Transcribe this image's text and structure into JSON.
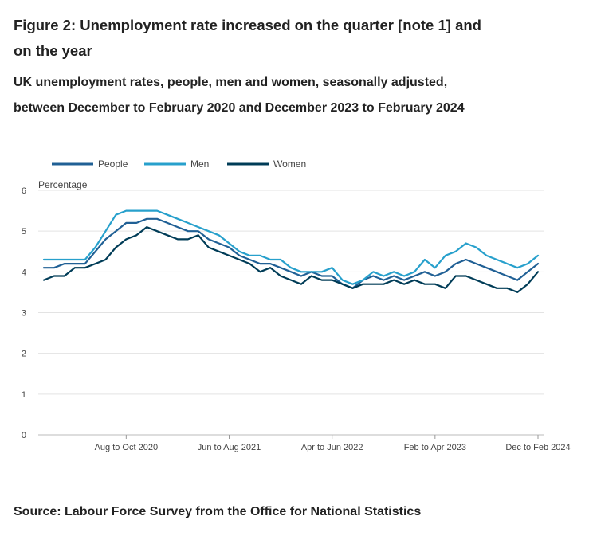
{
  "title": "Figure 2: Unemployment rate increased on the quarter [note 1] and on the year",
  "subtitle": "UK unemployment rates, people, men and women, seasonally adjusted, between December to February 2020 and December 2023 to February 2024",
  "source": "Source: Labour Force Survey from the Office for National Statistics",
  "chart_data": {
    "type": "line",
    "ylabel": "Percentage",
    "xlabel": "",
    "ylim": [
      0,
      6
    ],
    "yticks": [
      0,
      1,
      2,
      3,
      4,
      5,
      6
    ],
    "grid": true,
    "legend_position": "top-left",
    "x_tick_labels": [
      {
        "index": 8,
        "label": "Aug to Oct 2020"
      },
      {
        "index": 18,
        "label": "Jun to Aug 2021"
      },
      {
        "index": 28,
        "label": "Apr to Jun 2022"
      },
      {
        "index": 38,
        "label": "Feb to Apr 2023"
      },
      {
        "index": 48,
        "label": "Dec to Feb 2024"
      }
    ],
    "series": [
      {
        "name": "People",
        "color": "#206095",
        "values": [
          4.1,
          4.1,
          4.2,
          4.2,
          4.2,
          4.5,
          4.8,
          5.0,
          5.2,
          5.2,
          5.3,
          5.3,
          5.2,
          5.1,
          5.0,
          5.0,
          4.8,
          4.7,
          4.6,
          4.4,
          4.3,
          4.2,
          4.2,
          4.1,
          4.0,
          3.9,
          4.0,
          3.9,
          3.9,
          3.7,
          3.6,
          3.8,
          3.9,
          3.8,
          3.9,
          3.8,
          3.9,
          4.0,
          3.9,
          4.0,
          4.2,
          4.3,
          4.2,
          4.1,
          4.0,
          3.9,
          3.8,
          4.0,
          4.2
        ]
      },
      {
        "name": "Men",
        "color": "#27a0cc",
        "values": [
          4.3,
          4.3,
          4.3,
          4.3,
          4.3,
          4.6,
          5.0,
          5.4,
          5.5,
          5.5,
          5.5,
          5.5,
          5.4,
          5.3,
          5.2,
          5.1,
          5.0,
          4.9,
          4.7,
          4.5,
          4.4,
          4.4,
          4.3,
          4.3,
          4.1,
          4.0,
          4.0,
          4.0,
          4.1,
          3.8,
          3.7,
          3.8,
          4.0,
          3.9,
          4.0,
          3.9,
          4.0,
          4.3,
          4.1,
          4.4,
          4.5,
          4.7,
          4.6,
          4.4,
          4.3,
          4.2,
          4.1,
          4.2,
          4.4
        ]
      },
      {
        "name": "Women",
        "color": "#003c57",
        "values": [
          3.8,
          3.9,
          3.9,
          4.1,
          4.1,
          4.2,
          4.3,
          4.6,
          4.8,
          4.9,
          5.1,
          5.0,
          4.9,
          4.8,
          4.8,
          4.9,
          4.6,
          4.5,
          4.4,
          4.3,
          4.2,
          4.0,
          4.1,
          3.9,
          3.8,
          3.7,
          3.9,
          3.8,
          3.8,
          3.7,
          3.6,
          3.7,
          3.7,
          3.7,
          3.8,
          3.7,
          3.8,
          3.7,
          3.7,
          3.6,
          3.9,
          3.9,
          3.8,
          3.7,
          3.6,
          3.6,
          3.5,
          3.7,
          4.0
        ]
      }
    ]
  }
}
